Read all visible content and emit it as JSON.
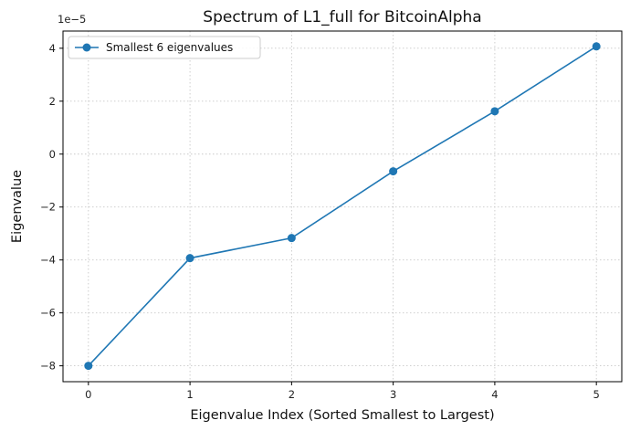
{
  "chart_data": {
    "type": "line",
    "title": "Spectrum of L1_full for BitcoinAlpha",
    "xlabel": "Eigenvalue Index (Sorted Smallest to Largest)",
    "ylabel": "Eigenvalue",
    "y_offset_text": "1e−5",
    "x": [
      0,
      1,
      2,
      3,
      4,
      5
    ],
    "series": [
      {
        "name": "Smallest 6 eigenvalues",
        "color": "#1f77b4",
        "marker": "circle",
        "values": [
          -8e-05,
          -3.93e-05,
          -3.17e-05,
          -6.5e-06,
          1.62e-05,
          4.07e-05
        ]
      }
    ],
    "xlim": [
      -0.25,
      5.25
    ],
    "ylim": [
      -8.6e-05,
      4.65e-05
    ],
    "xticks": [
      0,
      1,
      2,
      3,
      4,
      5
    ],
    "xtick_labels": [
      "0",
      "1",
      "2",
      "3",
      "4",
      "5"
    ],
    "yticks": [
      -8e-05,
      -6e-05,
      -4e-05,
      -2e-05,
      0,
      2e-05,
      4e-05
    ],
    "ytick_labels": [
      "−8",
      "−6",
      "−4",
      "−2",
      "0",
      "2",
      "4"
    ],
    "grid": true,
    "grid_style": "dotted",
    "legend_position": "upper-left"
  }
}
